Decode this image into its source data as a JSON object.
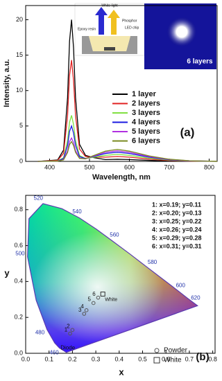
{
  "chart_data": [
    {
      "type": "line",
      "x_label": "Wavelength, nm",
      "y_label": "Intensity, a.u.",
      "annotation": "(a)",
      "x": [
        370,
        420,
        435,
        445,
        450,
        455,
        460,
        465,
        475,
        490,
        510,
        540,
        570,
        600,
        650,
        700,
        750,
        800,
        820
      ],
      "xlim": [
        340,
        820
      ],
      "xticks": [
        400,
        500,
        600,
        700,
        800
      ],
      "ylim": [
        0,
        22
      ],
      "yticks": [
        0,
        5,
        10,
        15,
        20
      ],
      "series": [
        {
          "name": "1 layer",
          "color": "#000000",
          "values": [
            0,
            0.2,
            1.6,
            9,
            17,
            20,
            16,
            9.01,
            2.42,
            0.85,
            0.54,
            0.26,
            0.3,
            0.26,
            0.14,
            0.05,
            0.02,
            0.01,
            0
          ]
        },
        {
          "name": "2 layers",
          "color": "#e02020",
          "values": [
            0,
            0.14,
            1.14,
            6.44,
            12.16,
            14.3,
            11.44,
            6.45,
            1.75,
            0.68,
            0.6,
            0.6,
            0.7,
            0.6,
            0.32,
            0.13,
            0.04,
            0.01,
            0.01
          ]
        },
        {
          "name": "3 layers",
          "color": "#80e040",
          "values": [
            0,
            0.07,
            0.52,
            2.93,
            5.53,
            6.5,
            5.2,
            2.95,
            0.83,
            0.41,
            0.58,
            0.85,
            1,
            0.85,
            0.45,
            0.18,
            0.06,
            0.02,
            0.01
          ]
        },
        {
          "name": "4 layers",
          "color": "#1a1ae0",
          "values": [
            0,
            0.05,
            0.4,
            2.25,
            4.25,
            5,
            4,
            2.28,
            0.67,
            0.4,
            0.69,
            1.11,
            1.3,
            1.11,
            0.59,
            0.23,
            0.08,
            0.03,
            0.01
          ]
        },
        {
          "name": "5 layers",
          "color": "#b030e0",
          "values": [
            0,
            0.03,
            0.26,
            1.49,
            2.81,
            3.3,
            2.64,
            1.52,
            0.47,
            0.36,
            0.74,
            1.28,
            1.5,
            1.28,
            0.68,
            0.27,
            0.09,
            0.03,
            0.02
          ]
        },
        {
          "name": "6 layers",
          "color": "#7a8a20",
          "values": [
            0,
            0.03,
            0.22,
            1.26,
            2.38,
            2.8,
            2.24,
            1.29,
            0.42,
            0.37,
            0.82,
            1.45,
            1.7,
            1.45,
            0.77,
            0.31,
            0.1,
            0.03,
            0.02
          ]
        }
      ],
      "inset": {
        "labels": [
          "White light",
          "Phosphor",
          "Epoxy resin",
          "LED chip"
        ],
        "photo_label": "6 layers"
      }
    },
    {
      "type": "cie",
      "x_label": "x",
      "y_label": "y",
      "annotation": "(b)",
      "xlim": [
        0,
        0.81
      ],
      "ylim": [
        0,
        0.88
      ],
      "xticks": [
        {
          "value": 0,
          "label": "0.0"
        },
        {
          "value": 0.1,
          "label": "0.1"
        },
        {
          "value": 0.2,
          "label": "0.2"
        },
        {
          "value": 0.3,
          "label": "0.3"
        },
        {
          "value": 0.4,
          "label": "0.4"
        },
        {
          "value": 0.5,
          "label": "0.5"
        },
        {
          "value": 0.6,
          "label": "0.6"
        },
        {
          "value": 0.7,
          "label": "0.7"
        },
        {
          "value": 0.8,
          "label": "0.8"
        }
      ],
      "yticks": [
        {
          "value": 0,
          "label": "0.0"
        },
        {
          "value": 0.2,
          "label": "0.2"
        },
        {
          "value": 0.4,
          "label": "0.4"
        },
        {
          "value": 0.6,
          "label": "0.6"
        },
        {
          "value": 0.8,
          "label": "0.8"
        }
      ],
      "locus": {
        "labels": [
          null,
          "460",
          null,
          "480",
          null,
          "500",
          null,
          "520",
          null,
          "540",
          null,
          "560",
          null,
          "580",
          "600",
          "620",
          null
        ],
        "x": [
          0.174,
          0.144,
          0.124,
          0.091,
          0.045,
          0.008,
          0.014,
          0.074,
          0.155,
          0.23,
          0.302,
          0.373,
          0.444,
          0.512,
          0.627,
          0.691,
          0.735
        ],
        "y": [
          0.005,
          0.03,
          0.058,
          0.133,
          0.295,
          0.538,
          0.75,
          0.834,
          0.806,
          0.754,
          0.692,
          0.624,
          0.555,
          0.487,
          0.373,
          0.308,
          0.265
        ]
      },
      "series": [
        {
          "name": "Powder",
          "marker": "circle",
          "color": "#555555",
          "labels": [
            "1",
            "2",
            "3",
            "4",
            "5",
            "6"
          ],
          "x": [
            0.19,
            0.2,
            0.25,
            0.26,
            0.29,
            0.31
          ],
          "y": [
            0.11,
            0.13,
            0.22,
            0.24,
            0.28,
            0.31
          ]
        },
        {
          "name": "White",
          "marker": "square",
          "color": "#333333",
          "labels": [
            "White"
          ],
          "x": [
            0.33
          ],
          "y": [
            0.33
          ]
        }
      ],
      "diode_label": "Diode",
      "coordinates": [
        "1: x=0.19; y=0.11",
        "2: x=0.20; y=0.13",
        "3: x=0.25; y=0.22",
        "4: x=0.26; y=0.24",
        "5: x=0.29; y=0.28",
        "6: x=0.31; y=0.31"
      ]
    }
  ]
}
